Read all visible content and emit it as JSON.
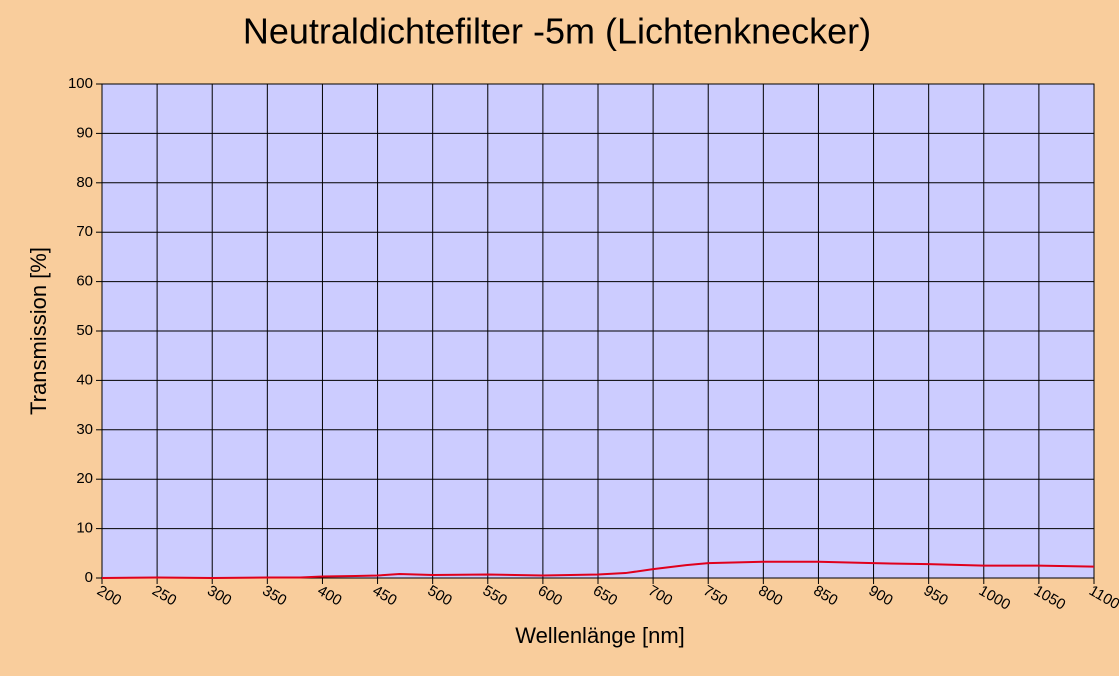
{
  "chart_data": {
    "type": "line",
    "title": "Neutraldichtefilter -5m (Lichtenknecker)",
    "x_label": "Wellenlänge [nm]",
    "y_label": "Transmission [%]",
    "x": [
      200,
      250,
      300,
      350,
      380,
      400,
      430,
      450,
      470,
      500,
      550,
      600,
      650,
      675,
      700,
      730,
      750,
      800,
      850,
      900,
      950,
      1000,
      1050,
      1100
    ],
    "values": [
      0,
      0.1,
      0,
      0.1,
      0.1,
      0.3,
      0.4,
      0.5,
      0.8,
      0.6,
      0.7,
      0.5,
      0.7,
      1.0,
      1.8,
      2.6,
      3.0,
      3.3,
      3.3,
      3.0,
      2.8,
      2.5,
      2.5,
      2.3
    ],
    "color": "#e0001c",
    "xlim": [
      200,
      1100
    ],
    "ylim": [
      0,
      100
    ],
    "xticks": [
      200,
      250,
      300,
      350,
      400,
      450,
      500,
      550,
      600,
      650,
      700,
      750,
      800,
      850,
      900,
      950,
      1000,
      1050,
      1100
    ],
    "yticks": [
      0,
      10,
      20,
      30,
      40,
      50,
      60,
      70,
      80,
      90,
      100
    ],
    "grid": true
  }
}
